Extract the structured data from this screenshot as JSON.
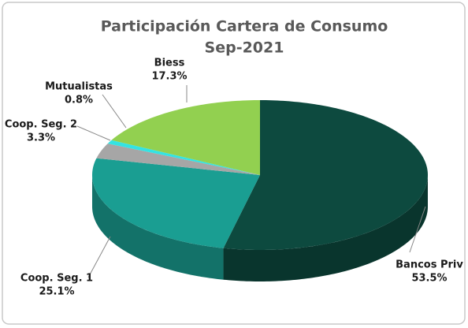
{
  "chart_data": {
    "type": "pie",
    "title": "Participación  Cartera de Consumo",
    "subtitle": "Sep-2021",
    "categories": [
      "Bancos Priv",
      "Coop. Seg. 1",
      "Coop. Seg. 2",
      "Mutualistas",
      "Biess"
    ],
    "values": [
      53.5,
      25.1,
      3.3,
      0.8,
      17.3
    ],
    "value_labels": [
      "53.5%",
      "25.1%",
      "3.3%",
      "0.8%",
      "17.3%"
    ],
    "colors": [
      "#0d4a3f",
      "#1a9e92",
      "#a6a6a6",
      "#33e3e3",
      "#92d050"
    ]
  }
}
